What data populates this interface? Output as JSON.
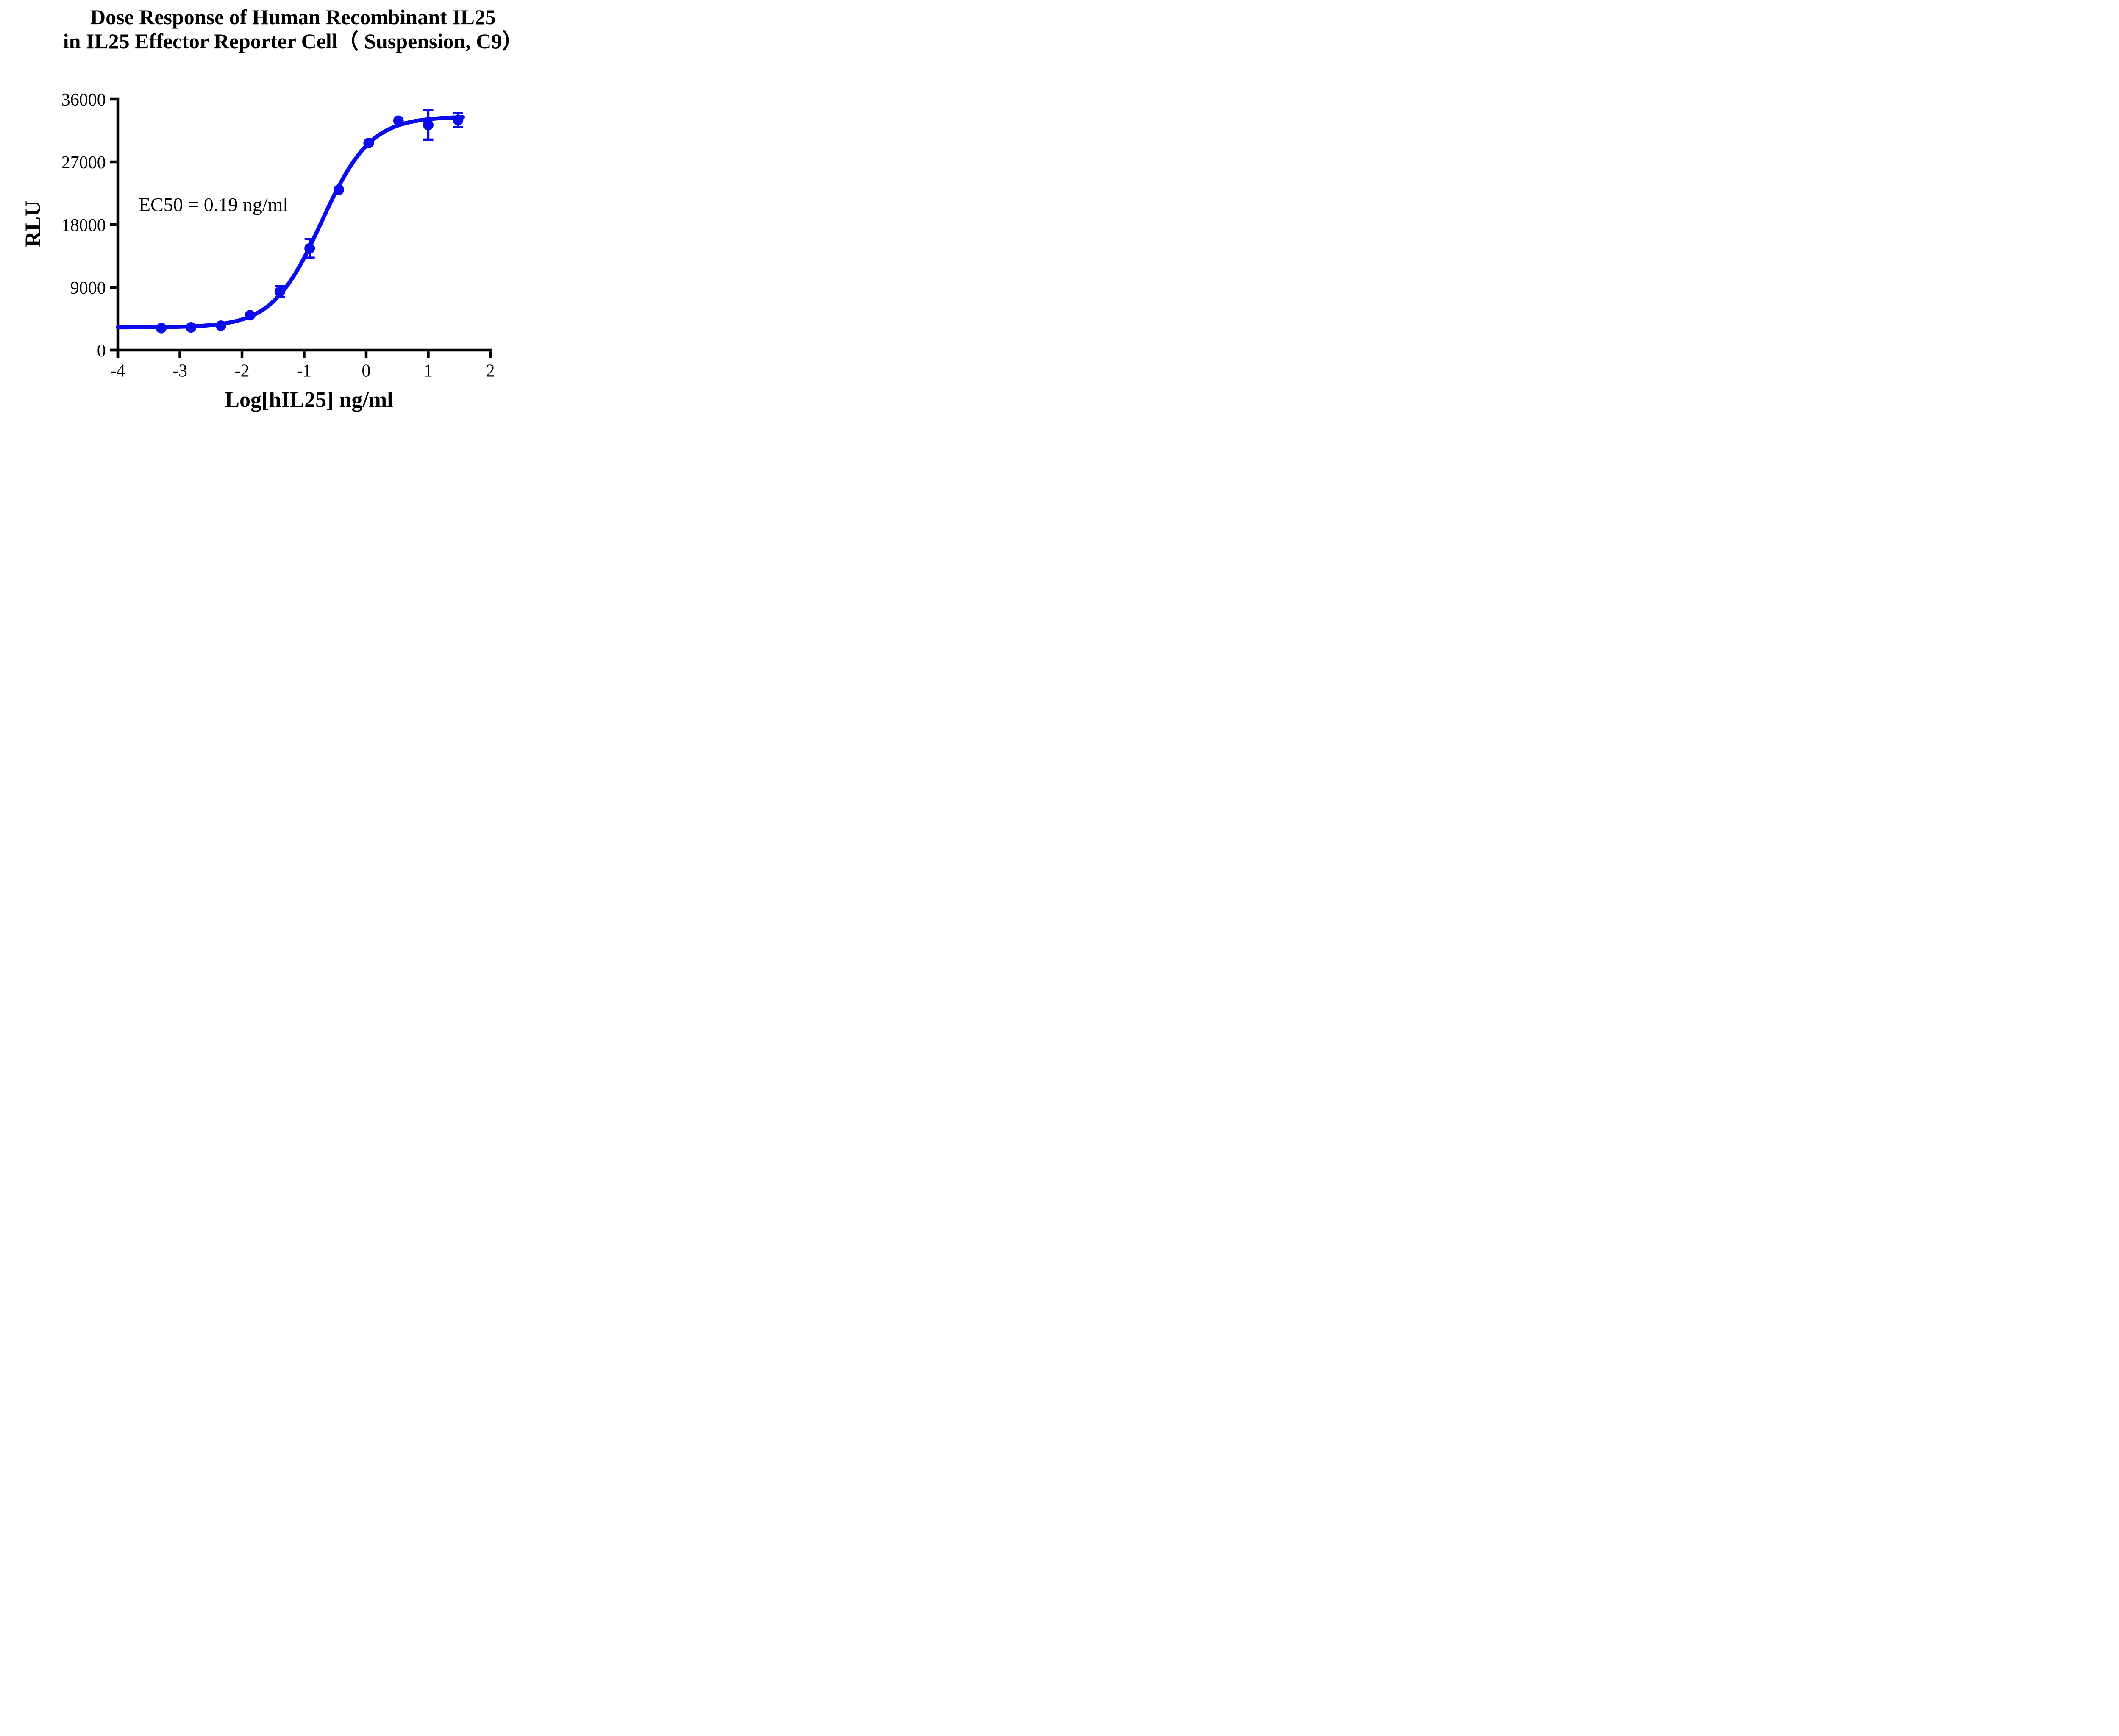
{
  "figure": {
    "title_line1": "Dose Response of Human Recombinant IL25",
    "title_line2": "in IL25 Effector Reporter Cell（ Suspension, C9）"
  },
  "annotation": {
    "ec50": "EC50 = 0.19 ng/ml"
  },
  "axes": {
    "x": {
      "title": "Log[hIL25] ng/ml",
      "min": -4,
      "max": 2,
      "tick_values": [
        -4,
        -3,
        -2,
        -1,
        0,
        1,
        2
      ],
      "tick_labels": [
        "-4",
        "-3",
        "-2",
        "-1",
        "0",
        "1",
        "2"
      ]
    },
    "y": {
      "title": "RLU",
      "min": 0,
      "max": 36000,
      "tick_values": [
        0,
        9000,
        18000,
        27000,
        36000
      ],
      "tick_labels": [
        "0",
        "9000",
        "18000",
        "27000",
        "36000"
      ]
    }
  },
  "chart_data": {
    "type": "scatter",
    "title": "Dose Response of Human Recombinant IL25 in IL25 Effector Reporter Cell（ Suspension, C9）",
    "xlabel": "Log[hIL25] ng/ml",
    "ylabel": "RLU",
    "xlim": [
      -4,
      2
    ],
    "ylim": [
      0,
      36000
    ],
    "grid": false,
    "legend_position": "none",
    "annotation": "EC50 = 0.19 ng/ml",
    "series": [
      {
        "marker": "circle",
        "color": "#0b0bf0",
        "x": [
          -3.3,
          -2.82,
          -2.34,
          -1.87,
          -1.39,
          -0.91,
          -0.44,
          0.04,
          0.52,
          1.0,
          1.48
        ],
        "y": [
          3150,
          3250,
          3500,
          5000,
          8400,
          14600,
          23000,
          29700,
          32900,
          32300,
          33000
        ],
        "y_err": [
          0,
          0,
          0,
          0,
          800,
          1350,
          0,
          0,
          0,
          2100,
          1000
        ]
      }
    ],
    "fit_curve": {
      "model": "4PL",
      "bottom": 3250,
      "top": 33500,
      "log_ec50": -0.72,
      "hill_slope": 1.1,
      "x_start": -4,
      "x_end": 1.56,
      "ec50_ng_ml": 0.19
    }
  },
  "style": {
    "curve_color": "#0b0bf0",
    "axis_color": "#000000",
    "text_color": "#000000"
  }
}
